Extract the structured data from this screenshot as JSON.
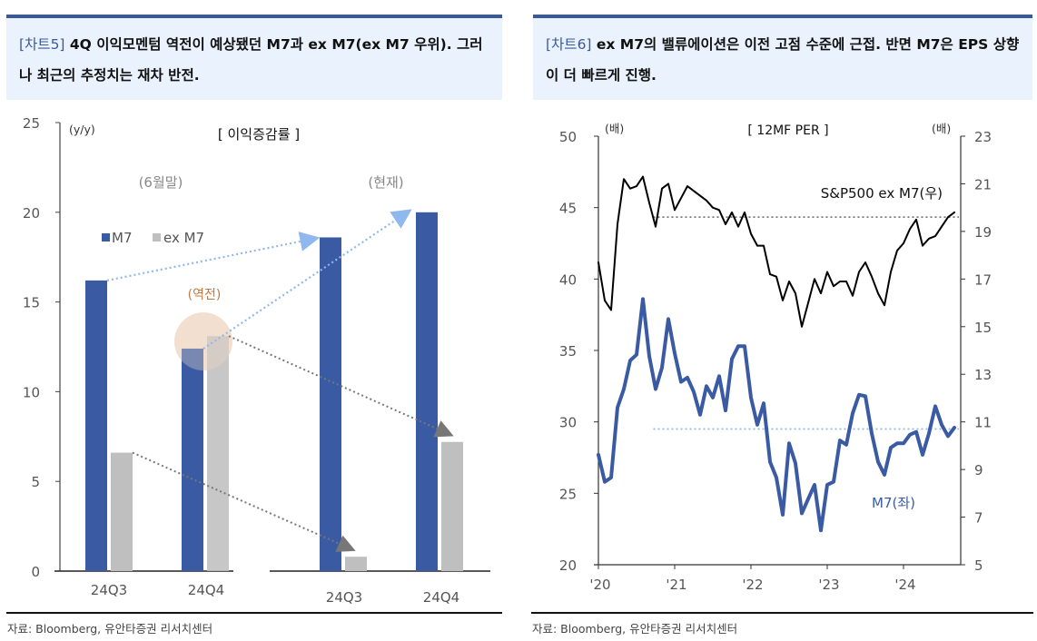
{
  "left": {
    "title_tag": "[차트5]",
    "title_text": " 4Q 이익모멘텀 역전이 예상됐던 M7과 ex M7(ex M7 우위). 그러나 최근의 추정치는 재차 반전.",
    "source": "자료: Bloomberg, 유안타증권 리서치센터"
  },
  "right": {
    "title_tag": "[차트6]",
    "title_text": " ex M7의 밸류에이션은 이전 고점 수준에 근접. 반면 M7은 EPS 상향이 더 빠르게 진행.",
    "source": "자료: Bloomberg, 유안타증권 리서치센터"
  },
  "chart_data": [
    {
      "type": "bar",
      "title": "[ 이익증감률 ]",
      "ylabel": "(y/y)",
      "ylim": [
        0,
        25
      ],
      "yticks": [
        0,
        5,
        10,
        15,
        20,
        25
      ],
      "groups": [
        {
          "label": "(6월말)",
          "categories": [
            "24Q3",
            "24Q4"
          ]
        },
        {
          "label": "(현재)",
          "categories": [
            "24Q3",
            "24Q4"
          ]
        }
      ],
      "series": [
        {
          "name": "M7",
          "color": "#3a5ba4",
          "values": [
            16.2,
            12.4,
            18.6,
            20.0
          ]
        },
        {
          "name": "ex M7",
          "color": "#bfbfbf",
          "values": [
            6.6,
            13.1,
            0.8,
            7.2
          ]
        }
      ],
      "annotation": "(역전)",
      "annotation_color": "#c07840",
      "highlight_color": "#f2dccb",
      "arrow_colors": {
        "m7": "#8fb8ee",
        "exm7": "#777777"
      }
    },
    {
      "type": "line",
      "title": "[ 12MF PER ]",
      "ylabel_left": "(배)",
      "ylabel_right": "(배)",
      "ylim_left": [
        20,
        50
      ],
      "yticks_left": [
        20,
        25,
        30,
        35,
        40,
        45,
        50
      ],
      "ylim_right": [
        5,
        23
      ],
      "yticks_right": [
        5,
        7,
        9,
        11,
        13,
        15,
        17,
        19,
        21,
        23
      ],
      "xlim": [
        2020,
        2024.75
      ],
      "xticks": [
        2020,
        2021,
        2022,
        2023,
        2024
      ],
      "xtick_labels": [
        "'20",
        "'21",
        "'22",
        "'23",
        "'24"
      ],
      "series": [
        {
          "name": "S&P500 ex M7(우)",
          "axis": "right",
          "color": "#000000",
          "start": 2020.0,
          "step_months": 1,
          "values": [
            17.7,
            16.1,
            15.7,
            19.3,
            21.2,
            20.8,
            20.9,
            21.3,
            20.2,
            19.2,
            20.8,
            21.0,
            19.9,
            20.4,
            20.9,
            20.7,
            20.5,
            20.3,
            20.0,
            19.9,
            19.3,
            19.8,
            19.2,
            19.8,
            18.9,
            18.4,
            18.4,
            17.2,
            17.1,
            16.1,
            16.9,
            16.4,
            15.0,
            16.0,
            17.0,
            16.4,
            17.3,
            16.7,
            16.9,
            16.9,
            16.3,
            17.3,
            17.7,
            17.1,
            16.4,
            15.9,
            17.3,
            18.2,
            18.5,
            19.1,
            19.5,
            18.4,
            18.7,
            18.8,
            19.2,
            19.6,
            19.8
          ]
        },
        {
          "name": "M7(좌)",
          "axis": "left",
          "color": "#3a5ba4",
          "start": 2020.0,
          "step_months": 1,
          "values": [
            27.7,
            25.8,
            26.1,
            31.0,
            32.3,
            34.3,
            34.7,
            38.6,
            34.6,
            32.3,
            33.8,
            37.2,
            34.8,
            32.8,
            33.1,
            32.1,
            30.5,
            32.5,
            31.7,
            33.2,
            30.8,
            34.4,
            35.3,
            35.3,
            31.7,
            29.8,
            31.3,
            27.2,
            26.1,
            23.5,
            28.5,
            27.1,
            23.6,
            24.6,
            25.6,
            22.4,
            25.6,
            25.8,
            28.7,
            28.4,
            30.6,
            31.9,
            31.8,
            29.2,
            27.2,
            26.3,
            28.2,
            28.5,
            28.5,
            29.1,
            29.3,
            27.7,
            29.2,
            31.1,
            29.8,
            29.0,
            29.6
          ]
        }
      ],
      "reference_lines": [
        {
          "axis": "right",
          "value": 19.6,
          "from": 2020.72,
          "color": "#777777"
        },
        {
          "axis": "left",
          "value": 29.5,
          "from": 2020.72,
          "color": "#8fb8ee"
        }
      ]
    }
  ]
}
